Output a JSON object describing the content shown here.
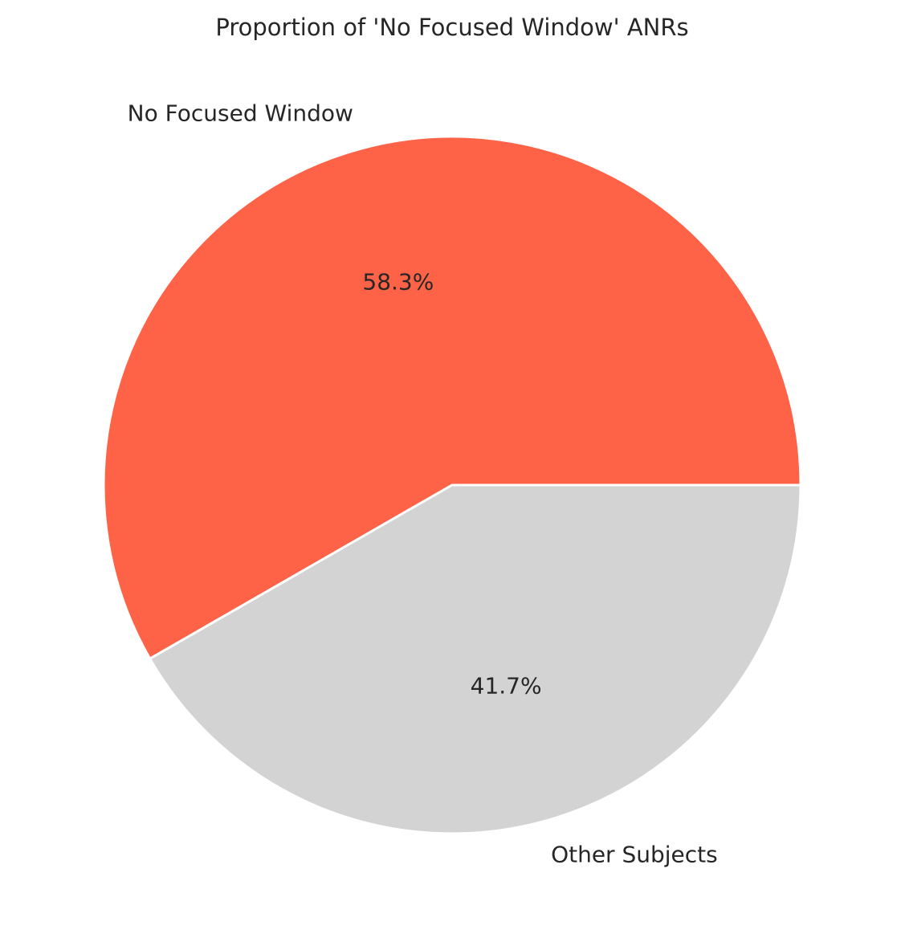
{
  "chart_data": {
    "type": "pie",
    "title": "Proportion of 'No Focused Window' ANRs",
    "start_angle_deg": 0,
    "direction": "counterclockwise",
    "slices": [
      {
        "label": "No Focused Window",
        "value": 58.3,
        "pct_label": "58.3%",
        "color": "#FF6347"
      },
      {
        "label": "Other Subjects",
        "value": 41.7,
        "pct_label": "41.7%",
        "color": "#D3D3D3"
      }
    ]
  }
}
